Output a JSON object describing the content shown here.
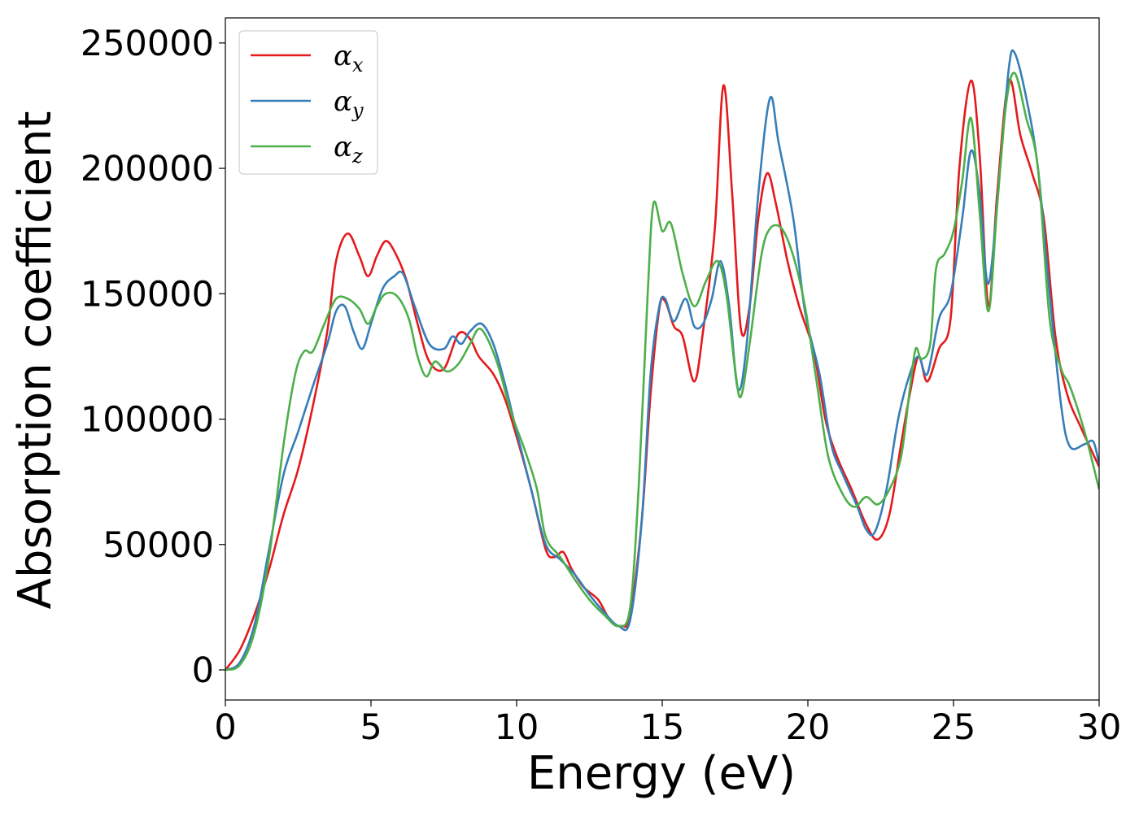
{
  "chart_data": {
    "type": "line",
    "title": "",
    "xlabel": "Energy (eV)",
    "ylabel": "Absorption coefficient",
    "xlim": [
      0,
      30
    ],
    "ylim": [
      -12000,
      260000
    ],
    "xticks": [
      0,
      5,
      10,
      15,
      20,
      25,
      30
    ],
    "xtick_labels": [
      "0",
      "5",
      "10",
      "15",
      "20",
      "25",
      "30"
    ],
    "yticks": [
      0,
      50000,
      100000,
      150000,
      200000,
      250000
    ],
    "ytick_labels": [
      "0",
      "50000",
      "100000",
      "150000",
      "200000",
      "250000"
    ],
    "grid": false,
    "legend_position": "upper-left",
    "series": [
      {
        "name": "α",
        "name_subscript": "x",
        "color": "#e41a1c",
        "points": [
          [
            0,
            0
          ],
          [
            0.5,
            8000
          ],
          [
            1,
            22000
          ],
          [
            1.5,
            40000
          ],
          [
            2,
            62000
          ],
          [
            2.5,
            80000
          ],
          [
            3,
            105000
          ],
          [
            3.5,
            135000
          ],
          [
            3.8,
            163000
          ],
          [
            4.2,
            174000
          ],
          [
            4.6,
            165000
          ],
          [
            4.9,
            157000
          ],
          [
            5.2,
            165000
          ],
          [
            5.5,
            171000
          ],
          [
            5.8,
            167000
          ],
          [
            6.2,
            156000
          ],
          [
            6.6,
            138000
          ],
          [
            7,
            123000
          ],
          [
            7.5,
            120000
          ],
          [
            8,
            134000
          ],
          [
            8.4,
            132000
          ],
          [
            8.7,
            125000
          ],
          [
            9.2,
            118000
          ],
          [
            9.6,
            108000
          ],
          [
            10,
            93000
          ],
          [
            10.5,
            72000
          ],
          [
            11,
            48000
          ],
          [
            11.3,
            45000
          ],
          [
            11.6,
            47000
          ],
          [
            11.9,
            40000
          ],
          [
            12.3,
            33000
          ],
          [
            12.8,
            28000
          ],
          [
            13.2,
            20000
          ],
          [
            13.6,
            17500
          ],
          [
            13.9,
            22000
          ],
          [
            14.3,
            60000
          ],
          [
            14.6,
            110000
          ],
          [
            14.9,
            144000
          ],
          [
            15.1,
            147000
          ],
          [
            15.4,
            137000
          ],
          [
            15.7,
            133000
          ],
          [
            16.1,
            115000
          ],
          [
            16.4,
            135000
          ],
          [
            16.8,
            175000
          ],
          [
            17.1,
            233000
          ],
          [
            17.4,
            190000
          ],
          [
            17.7,
            136000
          ],
          [
            18,
            145000
          ],
          [
            18.3,
            180000
          ],
          [
            18.6,
            198000
          ],
          [
            18.9,
            186000
          ],
          [
            19.3,
            163000
          ],
          [
            19.7,
            145000
          ],
          [
            20.2,
            127000
          ],
          [
            20.6,
            100000
          ],
          [
            21,
            85000
          ],
          [
            21.5,
            72000
          ],
          [
            22,
            58000
          ],
          [
            22.4,
            52000
          ],
          [
            22.8,
            62000
          ],
          [
            23.2,
            90000
          ],
          [
            23.5,
            110000
          ],
          [
            23.8,
            125000
          ],
          [
            24.1,
            115000
          ],
          [
            24.5,
            128000
          ],
          [
            24.9,
            140000
          ],
          [
            25.2,
            200000
          ],
          [
            25.6,
            235000
          ],
          [
            25.9,
            205000
          ],
          [
            26.2,
            145000
          ],
          [
            26.5,
            190000
          ],
          [
            26.9,
            235000
          ],
          [
            27.3,
            213000
          ],
          [
            27.7,
            198000
          ],
          [
            28.1,
            180000
          ],
          [
            28.5,
            133000
          ],
          [
            28.9,
            110000
          ],
          [
            29.4,
            96000
          ],
          [
            30,
            81000
          ]
        ]
      },
      {
        "name": "α",
        "name_subscript": "y",
        "color": "#377eb8",
        "points": [
          [
            0,
            0
          ],
          [
            0.5,
            3000
          ],
          [
            1,
            18000
          ],
          [
            1.5,
            48000
          ],
          [
            2,
            78000
          ],
          [
            2.5,
            95000
          ],
          [
            3,
            113000
          ],
          [
            3.5,
            130000
          ],
          [
            3.8,
            143000
          ],
          [
            4.1,
            145000
          ],
          [
            4.4,
            135000
          ],
          [
            4.7,
            128000
          ],
          [
            5,
            138000
          ],
          [
            5.4,
            152000
          ],
          [
            5.8,
            157000
          ],
          [
            6.1,
            158000
          ],
          [
            6.5,
            145000
          ],
          [
            7,
            130000
          ],
          [
            7.5,
            128000
          ],
          [
            7.8,
            133000
          ],
          [
            8.1,
            130000
          ],
          [
            8.4,
            135000
          ],
          [
            8.8,
            138000
          ],
          [
            9.2,
            130000
          ],
          [
            9.6,
            114000
          ],
          [
            10,
            95000
          ],
          [
            10.5,
            72000
          ],
          [
            11,
            50000
          ],
          [
            11.5,
            44000
          ],
          [
            12,
            38000
          ],
          [
            12.5,
            30000
          ],
          [
            13,
            23000
          ],
          [
            13.5,
            17500
          ],
          [
            13.9,
            20000
          ],
          [
            14.3,
            60000
          ],
          [
            14.6,
            118000
          ],
          [
            14.9,
            145000
          ],
          [
            15.1,
            148000
          ],
          [
            15.4,
            139000
          ],
          [
            15.8,
            148000
          ],
          [
            16.1,
            137000
          ],
          [
            16.4,
            138000
          ],
          [
            16.7,
            148000
          ],
          [
            17,
            163000
          ],
          [
            17.3,
            145000
          ],
          [
            17.6,
            112000
          ],
          [
            17.9,
            130000
          ],
          [
            18.3,
            190000
          ],
          [
            18.7,
            228000
          ],
          [
            19,
            210000
          ],
          [
            19.5,
            180000
          ],
          [
            19.9,
            143000
          ],
          [
            20.4,
            118000
          ],
          [
            20.8,
            90000
          ],
          [
            21.2,
            78000
          ],
          [
            21.7,
            65000
          ],
          [
            22,
            56000
          ],
          [
            22.3,
            55000
          ],
          [
            22.7,
            72000
          ],
          [
            23.1,
            100000
          ],
          [
            23.5,
            118000
          ],
          [
            23.8,
            125000
          ],
          [
            24.1,
            118000
          ],
          [
            24.5,
            140000
          ],
          [
            24.9,
            150000
          ],
          [
            25.3,
            180000
          ],
          [
            25.6,
            207000
          ],
          [
            25.9,
            190000
          ],
          [
            26.2,
            154000
          ],
          [
            26.6,
            200000
          ],
          [
            26.9,
            240000
          ],
          [
            27.1,
            246000
          ],
          [
            27.5,
            228000
          ],
          [
            27.9,
            200000
          ],
          [
            28.3,
            150000
          ],
          [
            28.7,
            105000
          ],
          [
            29,
            89000
          ],
          [
            29.5,
            90000
          ],
          [
            29.8,
            91000
          ],
          [
            30,
            82000
          ]
        ]
      },
      {
        "name": "α",
        "name_subscript": "z",
        "color": "#4daf4a",
        "points": [
          [
            0,
            0
          ],
          [
            0.5,
            2000
          ],
          [
            1,
            15000
          ],
          [
            1.5,
            45000
          ],
          [
            2,
            90000
          ],
          [
            2.4,
            118000
          ],
          [
            2.7,
            127000
          ],
          [
            3,
            127000
          ],
          [
            3.4,
            138000
          ],
          [
            3.8,
            148000
          ],
          [
            4.2,
            148000
          ],
          [
            4.6,
            144000
          ],
          [
            4.9,
            138000
          ],
          [
            5.2,
            145000
          ],
          [
            5.5,
            150000
          ],
          [
            5.9,
            149000
          ],
          [
            6.3,
            140000
          ],
          [
            6.6,
            125000
          ],
          [
            6.9,
            117000
          ],
          [
            7.2,
            123000
          ],
          [
            7.6,
            119000
          ],
          [
            8,
            122000
          ],
          [
            8.4,
            130000
          ],
          [
            8.7,
            136000
          ],
          [
            9,
            132000
          ],
          [
            9.4,
            120000
          ],
          [
            9.8,
            103000
          ],
          [
            10.3,
            87000
          ],
          [
            10.7,
            72000
          ],
          [
            11,
            53000
          ],
          [
            11.5,
            45000
          ],
          [
            12,
            36000
          ],
          [
            12.5,
            28000
          ],
          [
            13,
            22000
          ],
          [
            13.5,
            17500
          ],
          [
            13.9,
            25000
          ],
          [
            14.2,
            75000
          ],
          [
            14.5,
            150000
          ],
          [
            14.7,
            186000
          ],
          [
            15,
            175000
          ],
          [
            15.3,
            178000
          ],
          [
            15.7,
            158000
          ],
          [
            16.1,
            145000
          ],
          [
            16.5,
            155000
          ],
          [
            16.9,
            163000
          ],
          [
            17.2,
            150000
          ],
          [
            17.5,
            120000
          ],
          [
            17.7,
            109000
          ],
          [
            18,
            130000
          ],
          [
            18.4,
            165000
          ],
          [
            18.7,
            176000
          ],
          [
            19.1,
            176000
          ],
          [
            19.5,
            165000
          ],
          [
            19.9,
            145000
          ],
          [
            20.3,
            115000
          ],
          [
            20.7,
            85000
          ],
          [
            21.2,
            70000
          ],
          [
            21.6,
            65000
          ],
          [
            22,
            69000
          ],
          [
            22.4,
            66000
          ],
          [
            22.8,
            72000
          ],
          [
            23.2,
            85000
          ],
          [
            23.5,
            112000
          ],
          [
            23.7,
            128000
          ],
          [
            23.9,
            124000
          ],
          [
            24.2,
            130000
          ],
          [
            24.4,
            160000
          ],
          [
            24.7,
            166000
          ],
          [
            25,
            175000
          ],
          [
            25.3,
            195000
          ],
          [
            25.6,
            220000
          ],
          [
            25.9,
            182000
          ],
          [
            26.2,
            143000
          ],
          [
            26.5,
            185000
          ],
          [
            26.8,
            225000
          ],
          [
            27.1,
            238000
          ],
          [
            27.5,
            220000
          ],
          [
            27.9,
            200000
          ],
          [
            28.3,
            140000
          ],
          [
            28.7,
            120000
          ],
          [
            29,
            113000
          ],
          [
            29.5,
            95000
          ],
          [
            30,
            72000
          ]
        ]
      }
    ]
  }
}
